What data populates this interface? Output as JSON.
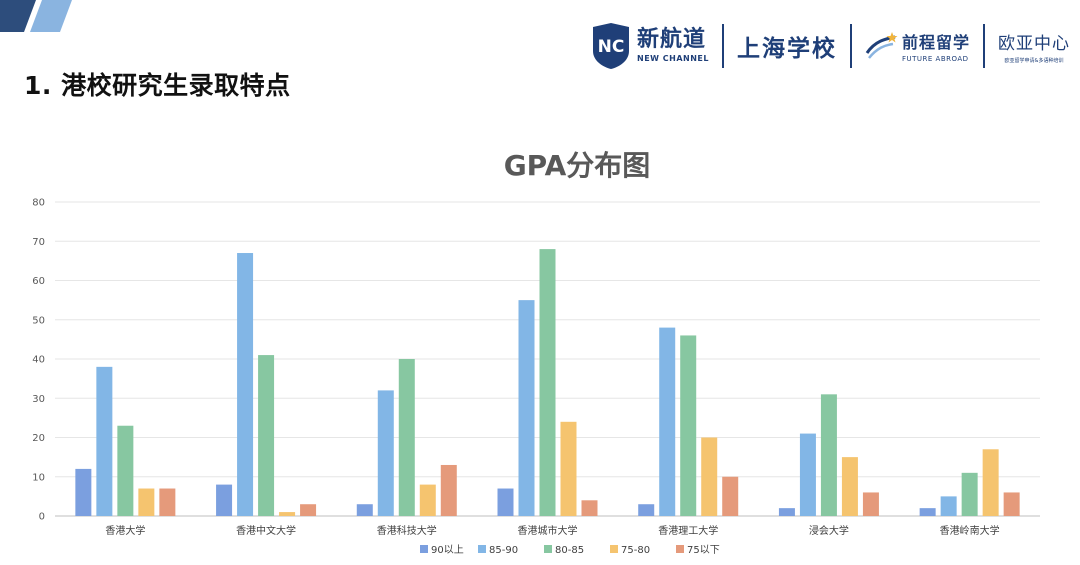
{
  "page_title": "1. 港校研究生录取特点",
  "header": {
    "logo_mark": "NC",
    "brand_cn": "新航道",
    "brand_en": "NEW CHANNEL",
    "school": "上海学校",
    "future_cn": "前程留学",
    "future_en": "FUTURE ABROAD",
    "europe_cn": "欧亚中心",
    "europe_sub": "欧亚留学申请&多语种培训"
  },
  "chart_data": {
    "type": "bar",
    "title": "GPA分布图",
    "xlabel": "",
    "ylabel": "",
    "ylim": [
      0,
      80
    ],
    "yticks": [
      0,
      10,
      20,
      30,
      40,
      50,
      60,
      70,
      80
    ],
    "grid": true,
    "legend_position": "bottom",
    "categories": [
      "香港大学",
      "香港中文大学",
      "香港科技大学",
      "香港城市大学",
      "香港理工大学",
      "浸会大学",
      "香港岭南大学"
    ],
    "series": [
      {
        "name": "90以上",
        "color": "#7b9fdf",
        "values": [
          12,
          8,
          3,
          7,
          3,
          2,
          2
        ]
      },
      {
        "name": "85-90",
        "color": "#82b6e6",
        "values": [
          38,
          67,
          32,
          55,
          48,
          21,
          5
        ]
      },
      {
        "name": "80-85",
        "color": "#87c7a1",
        "values": [
          23,
          41,
          40,
          68,
          46,
          31,
          11
        ]
      },
      {
        "name": "75-80",
        "color": "#f5c46f",
        "values": [
          7,
          1,
          8,
          24,
          20,
          15,
          17
        ]
      },
      {
        "name": "75以下",
        "color": "#e59a7b",
        "values": [
          7,
          3,
          13,
          4,
          10,
          6,
          6
        ]
      }
    ]
  }
}
